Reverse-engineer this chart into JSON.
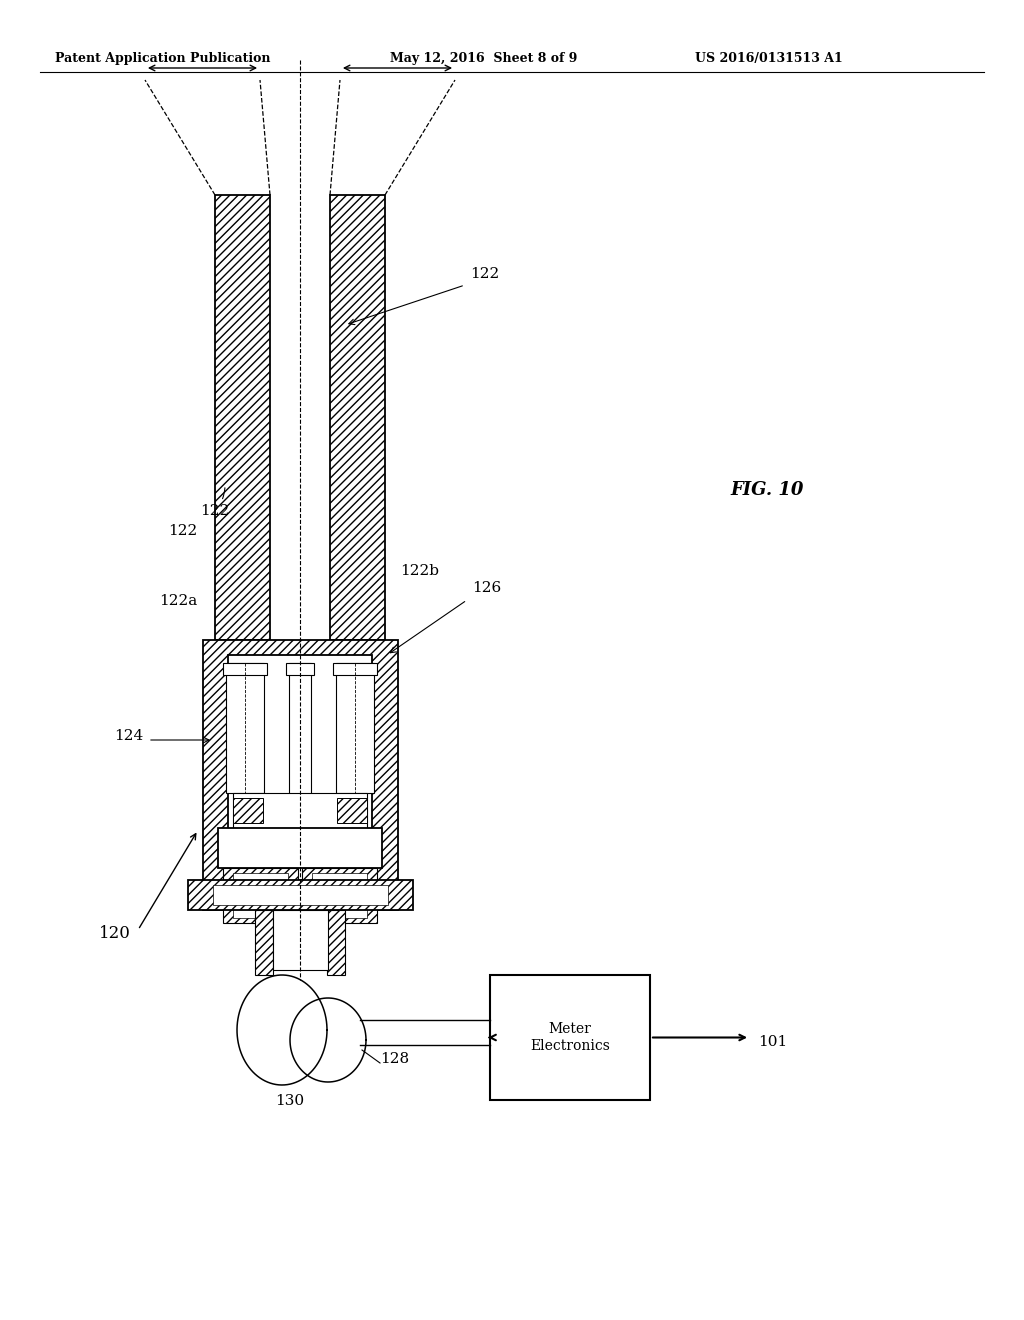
{
  "bg_color": "#ffffff",
  "header_left": "Patent Application Publication",
  "header_center": "May 12, 2016  Sheet 8 of 9",
  "header_right": "US 2016/0131513 A1",
  "fig_label": "FIG. 10",
  "box_label": "Meter\nElectronics"
}
